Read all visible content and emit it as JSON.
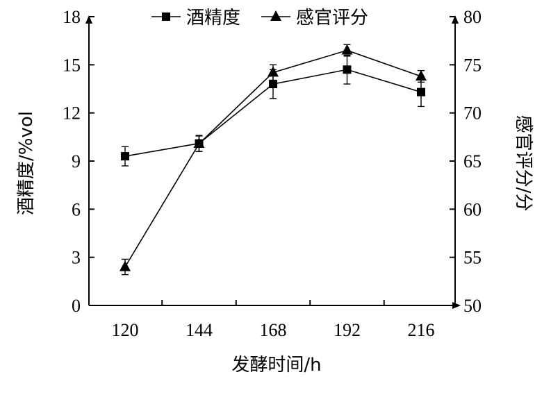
{
  "chart_data": {
    "type": "line",
    "categories": [
      "120",
      "144",
      "168",
      "192",
      "216"
    ],
    "xlabel": "发酵时间/h",
    "y_left": {
      "label": "酒精度/%vol",
      "range": [
        0,
        18
      ],
      "ticks": [
        "0",
        "3",
        "6",
        "9",
        "12",
        "15",
        "18"
      ]
    },
    "y_right": {
      "label": "感官评分/分",
      "range": [
        50,
        80
      ],
      "ticks": [
        "50",
        "55",
        "60",
        "65",
        "70",
        "75",
        "80"
      ]
    },
    "legend_position": "top-center",
    "grid": false,
    "series": [
      {
        "name": "酒精度",
        "axis": "left",
        "marker": "square",
        "values": [
          9.3,
          10.1,
          13.8,
          14.7,
          13.3
        ],
        "errors": [
          0.6,
          0.5,
          0.9,
          0.9,
          0.9
        ]
      },
      {
        "name": "感官评分",
        "axis": "right",
        "marker": "triangle",
        "values": [
          54.0,
          66.8,
          74.2,
          76.5,
          73.8
        ],
        "errors": [
          0.8,
          0.8,
          0.8,
          0.6,
          0.6
        ]
      }
    ]
  }
}
